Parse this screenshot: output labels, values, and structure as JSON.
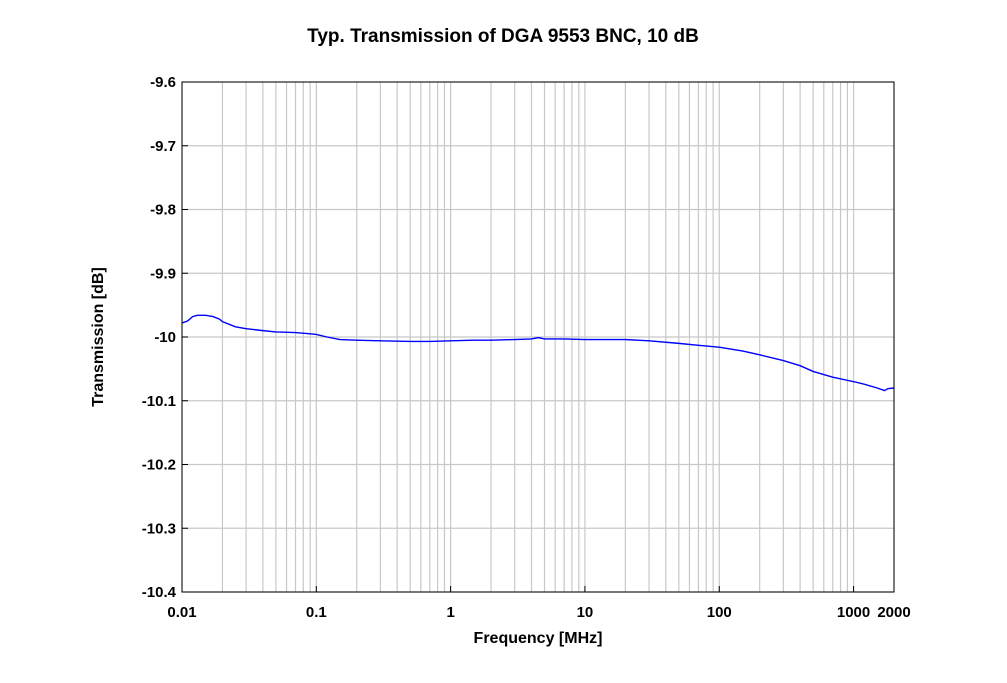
{
  "chart_data": {
    "type": "line",
    "title": "Typ. Transmission of DGA 9553 BNC, 10 dB",
    "xlabel": "Frequency [MHz]",
    "ylabel": "Transmission [dB]",
    "xscale": "log",
    "xlim": [
      0.01,
      2000
    ],
    "ylim": [
      -10.4,
      -9.6
    ],
    "grid": true,
    "x_tick_values": [
      0.01,
      0.1,
      1,
      10,
      100,
      1000,
      2000
    ],
    "x_tick_labels": [
      "0.01",
      "0.1",
      "1",
      "10",
      "100",
      "1000",
      "2000"
    ],
    "y_tick_values": [
      -9.6,
      -9.7,
      -9.8,
      -9.9,
      -10,
      -10.1,
      -10.2,
      -10.3,
      -10.4
    ],
    "y_tick_labels": [
      "-9.6",
      "-9.7",
      "-9.8",
      "-9.9",
      "-10",
      "-10.1",
      "-10.2",
      "-10.3",
      "-10.4"
    ],
    "series": [
      {
        "name": "Transmission",
        "color": "#0000ff",
        "x": [
          0.01,
          0.011,
          0.012,
          0.013,
          0.015,
          0.017,
          0.019,
          0.02,
          0.025,
          0.03,
          0.04,
          0.05,
          0.07,
          0.09,
          0.1,
          0.12,
          0.15,
          0.2,
          0.3,
          0.5,
          0.7,
          1,
          1.5,
          2,
          3,
          4,
          4.5,
          5,
          7,
          10,
          20,
          30,
          50,
          70,
          100,
          150,
          200,
          300,
          400,
          500,
          700,
          1000,
          1200,
          1500,
          1700,
          1800,
          2000
        ],
        "y": [
          -9.978,
          -9.975,
          -9.968,
          -9.966,
          -9.966,
          -9.968,
          -9.972,
          -9.976,
          -9.984,
          -9.987,
          -9.99,
          -9.992,
          -9.993,
          -9.995,
          -9.996,
          -10.0,
          -10.004,
          -10.005,
          -10.006,
          -10.007,
          -10.007,
          -10.006,
          -10.005,
          -10.005,
          -10.004,
          -10.003,
          -10.001,
          -10.003,
          -10.003,
          -10.004,
          -10.004,
          -10.006,
          -10.01,
          -10.013,
          -10.016,
          -10.022,
          -10.028,
          -10.037,
          -10.045,
          -10.054,
          -10.063,
          -10.07,
          -10.074,
          -10.08,
          -10.084,
          -10.081,
          -10.08
        ]
      }
    ]
  }
}
